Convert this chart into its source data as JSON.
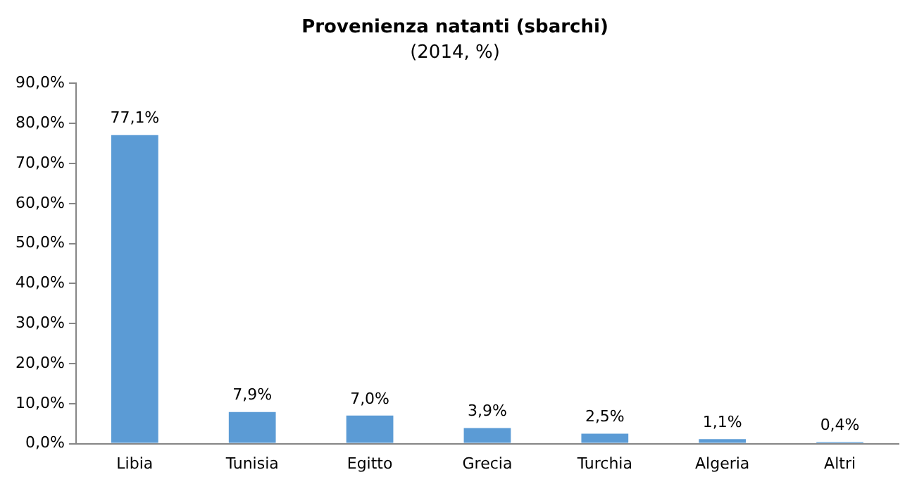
{
  "chart_data": {
    "type": "bar",
    "title": "Provenienza natanti (sbarchi)",
    "subtitle": "(2014, %)",
    "categories": [
      "Libia",
      "Tunisia",
      "Egitto",
      "Grecia",
      "Turchia",
      "Algeria",
      "Altri"
    ],
    "values": [
      77.1,
      7.9,
      7.0,
      3.9,
      2.5,
      1.1,
      0.4
    ],
    "value_labels": [
      "77,1%",
      "7,9%",
      "7,0%",
      "3,9%",
      "2,5%",
      "1,1%",
      "0,4%"
    ],
    "color": "#5b9bd5",
    "ylim": [
      0,
      90
    ],
    "yticks": [
      {
        "value": 0,
        "label": "0,0%"
      },
      {
        "value": 10,
        "label": "10,0%"
      },
      {
        "value": 20,
        "label": "20,0%"
      },
      {
        "value": 30,
        "label": "30,0%"
      },
      {
        "value": 40,
        "label": "40,0%"
      },
      {
        "value": 50,
        "label": "50,0%"
      },
      {
        "value": 60,
        "label": "60,0%"
      },
      {
        "value": 70,
        "label": "70,0%"
      },
      {
        "value": 80,
        "label": "80,0%"
      },
      {
        "value": 90,
        "label": "90,0%"
      }
    ],
    "grid": false
  }
}
